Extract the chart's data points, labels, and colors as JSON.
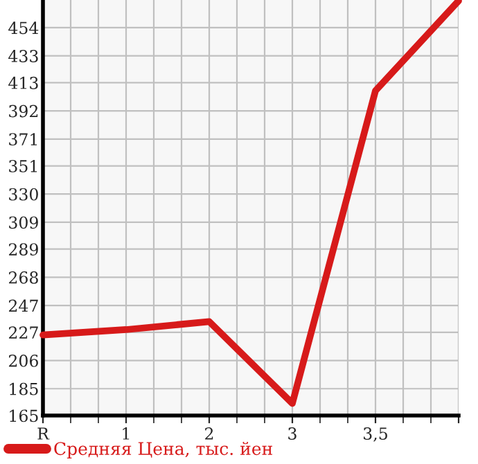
{
  "chart_data": {
    "type": "line",
    "categories": [
      "R",
      "1",
      "2",
      "3",
      "3,5",
      null
    ],
    "series": [
      {
        "name": "Средняя Цена, тыс. йен",
        "color": "#d71a1a",
        "values": [
          225,
          229,
          235,
          174,
          407,
          474
        ]
      }
    ],
    "ylim": [
      165,
      474.6
    ],
    "yticks": [
      165,
      185,
      206,
      227,
      247,
      268,
      289,
      309,
      330,
      351,
      371,
      392,
      413,
      433,
      454
    ],
    "grid": true,
    "legend": "bottom",
    "marker": "none",
    "line_style": "solid"
  }
}
